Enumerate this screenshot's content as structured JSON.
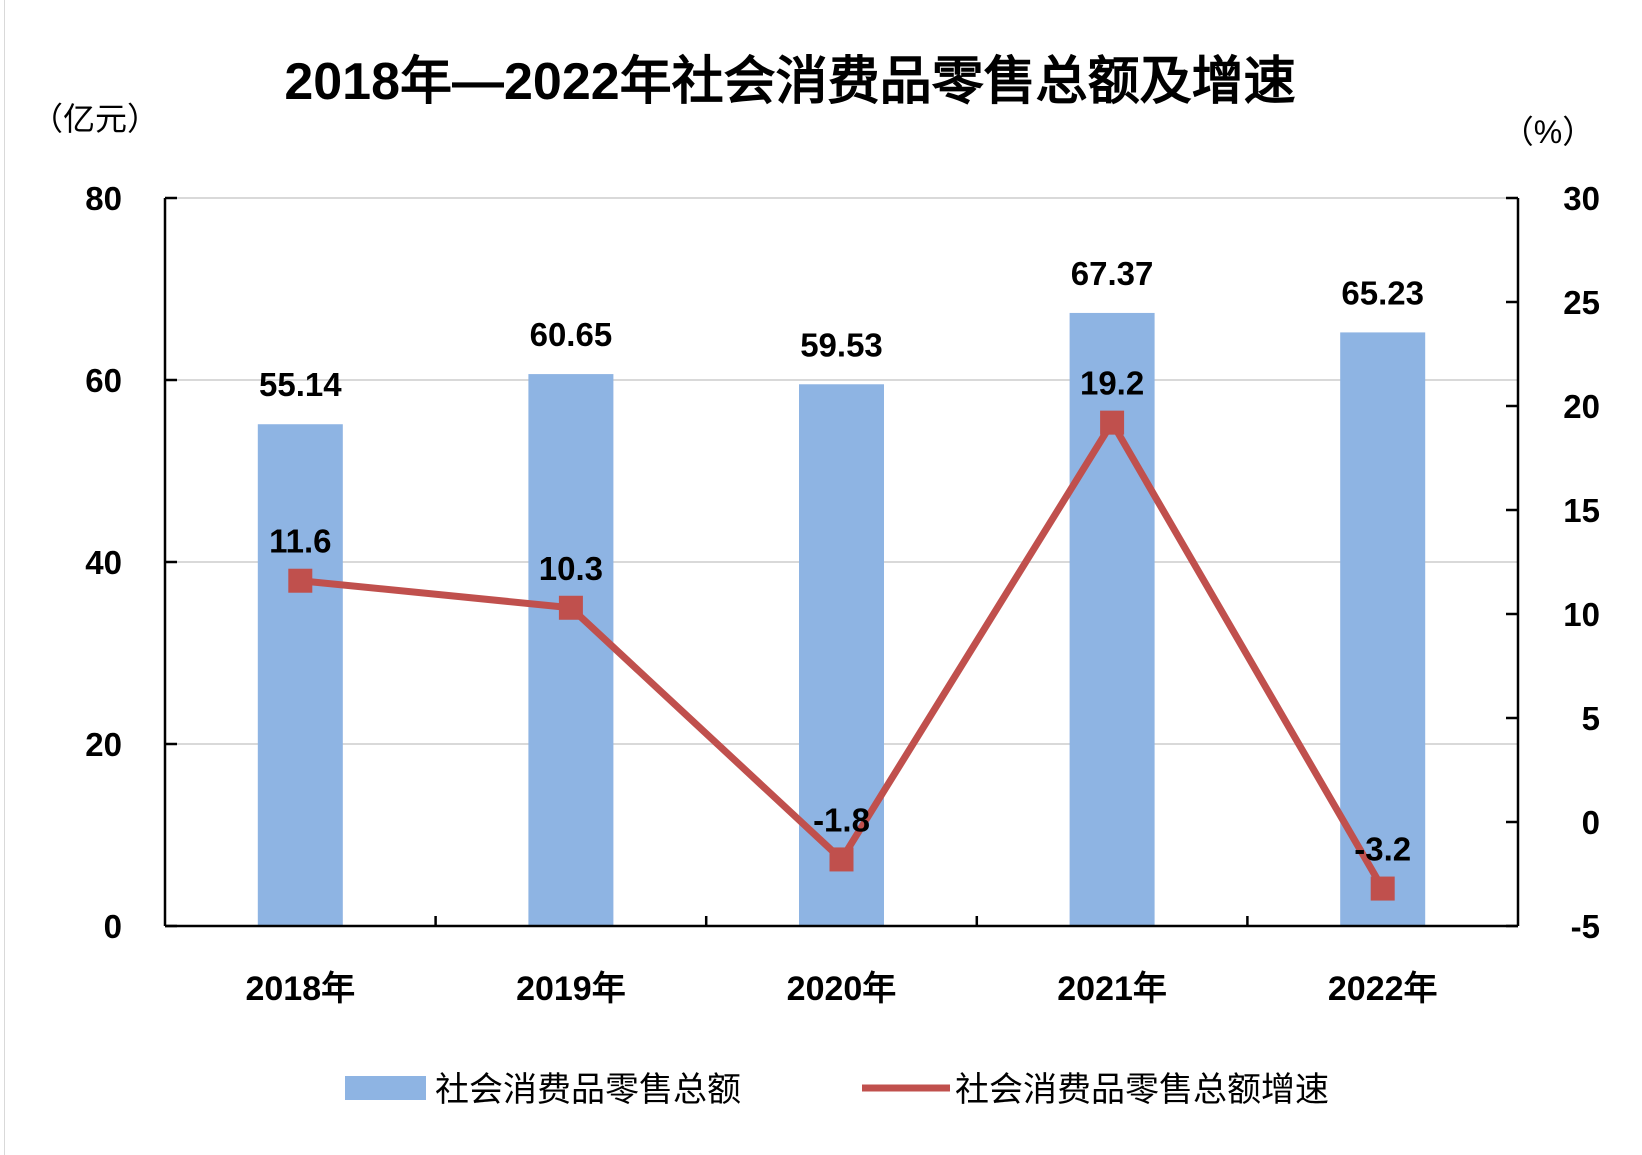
{
  "chart_data": {
    "type": "bar+line",
    "title": "2018年—2022年社会消费品零售总额及增速",
    "y_left_unit": "（亿元）",
    "y_right_unit": "（%）",
    "categories": [
      "2018年",
      "2019年",
      "2020年",
      "2021年",
      "2022年"
    ],
    "ylim_left": [
      0,
      80
    ],
    "yticks_left": [
      0,
      20,
      40,
      60,
      80
    ],
    "ylim_right": [
      -5,
      30
    ],
    "yticks_right": [
      -5,
      0,
      5,
      10,
      15,
      20,
      25,
      30
    ],
    "grid": true,
    "legend_position": "bottom",
    "series": [
      {
        "name": "社会消费品零售总额",
        "type": "bar",
        "axis": "left",
        "color": "#8eb4e3",
        "values": [
          55.14,
          60.65,
          59.53,
          67.37,
          65.23
        ],
        "labels": [
          "55.14",
          "60.65",
          "59.53",
          "67.37",
          "65.23"
        ]
      },
      {
        "name": "社会消费品零售总额增速",
        "type": "line",
        "axis": "right",
        "color": "#c0504d",
        "values": [
          11.6,
          10.3,
          -1.8,
          19.2,
          -3.2
        ],
        "labels": [
          "11.6",
          "10.3",
          "-1.8",
          "19.2",
          "-3.2"
        ]
      }
    ]
  }
}
